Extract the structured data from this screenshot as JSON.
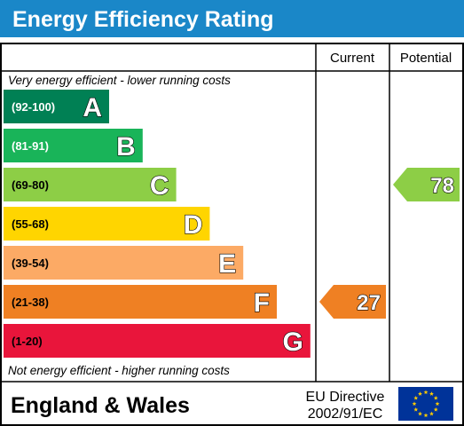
{
  "title": "Energy Efficiency Rating",
  "columns": {
    "current": "Current",
    "potential": "Potential"
  },
  "top_caption": "Very energy efficient - lower running costs",
  "bottom_caption": "Not energy efficient - higher running costs",
  "footer": {
    "region": "England & Wales",
    "directive_line1": "EU Directive",
    "directive_line2": "2002/91/EC"
  },
  "colors": {
    "title_bar": "#1a87c8",
    "border": "#000000",
    "flag": "#003399",
    "stars": "#ffcc00"
  },
  "chart_data": {
    "type": "bar",
    "title": "Energy Efficiency Rating",
    "categories": [
      "A",
      "B",
      "C",
      "D",
      "E",
      "F",
      "G"
    ],
    "ranges": [
      "(92-100)",
      "(81-91)",
      "(69-80)",
      "(55-68)",
      "(39-54)",
      "(21-38)",
      "(1-20)"
    ],
    "range_min": [
      92,
      81,
      69,
      55,
      39,
      21,
      1
    ],
    "range_max": [
      100,
      91,
      80,
      68,
      54,
      38,
      20
    ],
    "band_colors": [
      "#008054",
      "#19b459",
      "#8dce46",
      "#ffd500",
      "#fcaa65",
      "#ef8023",
      "#e9153b"
    ],
    "range_text_colors": [
      "#ffffff",
      "#ffffff",
      "#000000",
      "#000000",
      "#000000",
      "#000000",
      "#000000"
    ],
    "current": {
      "value": 27,
      "band": "F",
      "color": "#ef8023"
    },
    "potential": {
      "value": 78,
      "band": "C",
      "color": "#8dce46"
    }
  }
}
